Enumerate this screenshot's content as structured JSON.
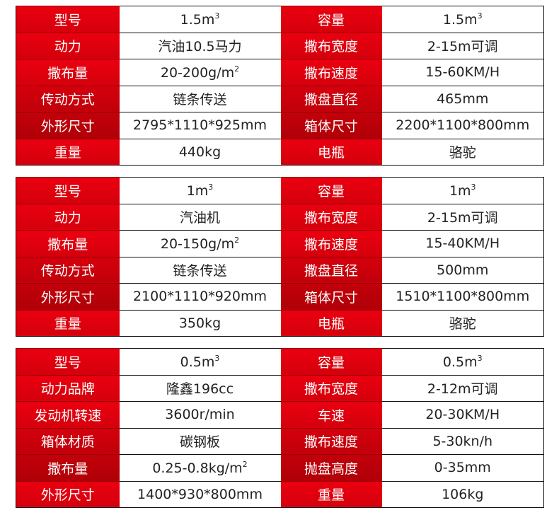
{
  "tables": [
    {
      "rows": [
        {
          "l1": "型号",
          "v1": "1.5m",
          "v1_sup": "3",
          "l2": "容量",
          "v2": "1.5m",
          "v2_sup": "3"
        },
        {
          "l1": "动力",
          "v1": "汽油10.5马力",
          "l2": "撒布宽度",
          "v2": "2-15m可调"
        },
        {
          "l1": "撒布量",
          "v1": "20-200g/m",
          "v1_sup": "2",
          "l2": "撒布速度",
          "v2": "15-60KM/H"
        },
        {
          "l1": "传动方式",
          "v1": "链条传送",
          "l2": "撒盘直径",
          "v2": "465mm"
        },
        {
          "l1": "外形尺寸",
          "v1": "2795*1110*925mm",
          "l2": "箱体尺寸",
          "v2": "2200*1100*800mm"
        },
        {
          "l1": "重量",
          "v1": "440kg",
          "l2": "电瓶",
          "v2": "骆驼"
        }
      ]
    },
    {
      "rows": [
        {
          "l1": "型号",
          "v1": "1m",
          "v1_sup": "3",
          "l2": "容量",
          "v2": "1m",
          "v2_sup": "3"
        },
        {
          "l1": "动力",
          "v1": "汽油机",
          "l2": "撒布宽度",
          "v2": "2-15m可调"
        },
        {
          "l1": "撒布量",
          "v1": "20-150g/m",
          "v1_sup": "2",
          "l2": "撒布速度",
          "v2": "15-40KM/H"
        },
        {
          "l1": "传动方式",
          "v1": "链条传送",
          "l2": "撒盘直径",
          "v2": "500mm"
        },
        {
          "l1": "外形尺寸",
          "v1": "2100*1110*920mm",
          "l2": "箱体尺寸",
          "v2": "1510*1100*800mm"
        },
        {
          "l1": "重量",
          "v1": "350kg",
          "l2": "电瓶",
          "v2": "骆驼"
        }
      ]
    },
    {
      "rows": [
        {
          "l1": "型号",
          "v1": "0.5m",
          "v1_sup": "3",
          "l2": "容量",
          "v2": "0.5m",
          "v2_sup": "3"
        },
        {
          "l1": "动力品牌",
          "v1": "隆鑫196cc",
          "l2": "撒布宽度",
          "v2": "2-12m可调"
        },
        {
          "l1": "发动机转速",
          "v1": "3600r/min",
          "l2": "车速",
          "v2": "20-30KM/H"
        },
        {
          "l1": "箱体材质",
          "v1": "碳钢板",
          "l2": "撒布速度",
          "v2": "5-30kn/h"
        },
        {
          "l1": "撒布量",
          "v1": "0.25-0.8kg/m",
          "v1_sup": "2",
          "l2": "抛盘高度",
          "v2": "0-35mm"
        },
        {
          "l1": "外形尺寸",
          "v1": "1400*930*800mm",
          "l2": "重量",
          "v2": "106kg"
        }
      ]
    }
  ],
  "colors": {
    "label_bg": "#e60012",
    "label_text": "#ffffff",
    "border": "#111111"
  }
}
